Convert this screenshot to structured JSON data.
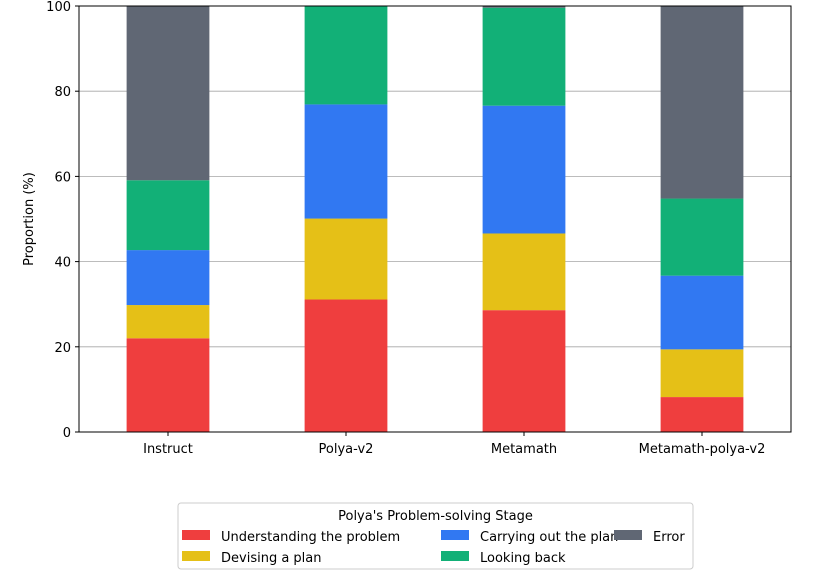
{
  "chart_data": {
    "type": "bar",
    "stacked": true,
    "categories": [
      "Instruct",
      "Polya-v2",
      "Metamath",
      "Metamath-polya-v2"
    ],
    "series": [
      {
        "name": "Understanding the problem",
        "color": "#ef3e3e",
        "values": [
          22.0,
          31.1,
          28.6,
          8.2
        ]
      },
      {
        "name": "Devising a plan",
        "color": "#e5c017",
        "values": [
          7.8,
          19.0,
          18.0,
          11.2
        ]
      },
      {
        "name": "Carrying out the plan",
        "color": "#3178f2",
        "values": [
          12.9,
          26.8,
          30.0,
          17.3
        ]
      },
      {
        "name": "Looking back",
        "color": "#12b077",
        "values": [
          16.4,
          23.1,
          23.0,
          18.1
        ]
      },
      {
        "name": "Error",
        "color": "#606774",
        "values": [
          40.9,
          0.0,
          0.4,
          45.2
        ]
      }
    ],
    "title": "",
    "xlabel": "",
    "ylabel": "Proportion (%)",
    "ylim": [
      0,
      100
    ],
    "yticks": [
      0,
      20,
      40,
      60,
      80,
      100
    ],
    "grid": "horizontal",
    "legend": {
      "title": "Polya's Problem-solving Stage",
      "placement": "bottom-center",
      "columns": 3
    }
  }
}
